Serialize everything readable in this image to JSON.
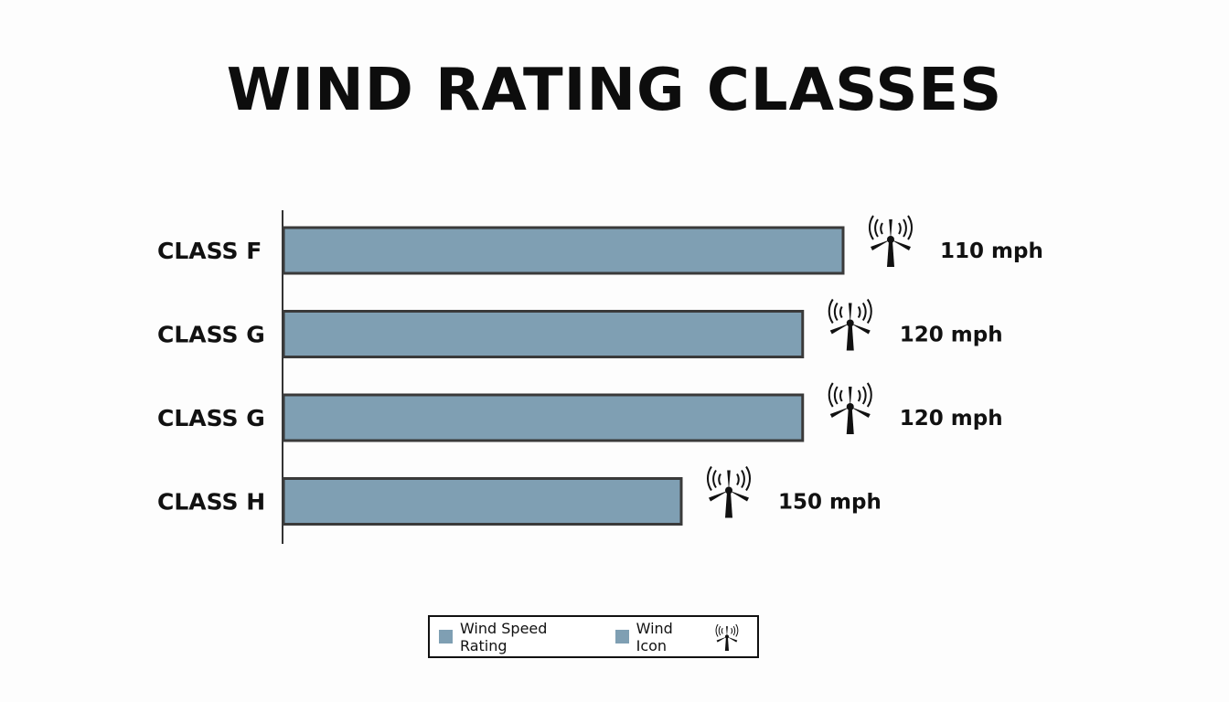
{
  "chart_data": {
    "type": "bar",
    "orientation": "horizontal",
    "title": "WIND RATING CLASSES",
    "categories": [
      "CLASS F",
      "CLASS G",
      "CLASS G",
      "CLASS H"
    ],
    "value_labels": [
      "110 mph",
      "120 mph",
      "120 mph",
      "150 mph"
    ],
    "series": [
      {
        "name": "Wind Speed Rating",
        "values": [
          110,
          120,
          120,
          150
        ]
      }
    ],
    "legend": {
      "position": "bottom-center",
      "items": [
        {
          "label": "Wind Speed Rating",
          "color": "#7f9fb3"
        },
        {
          "label": "Wind Icon",
          "color": "#7f9fb3",
          "icon": "wind-turbine-icon"
        }
      ]
    },
    "grid": false,
    "colors": {
      "bar_fill": "#7f9fb3",
      "bar_stroke": "#3a3a3a",
      "axis": "#333333"
    }
  }
}
